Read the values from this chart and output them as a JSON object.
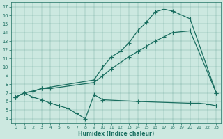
{
  "xlabel": "Humidex (Indice chaleur)",
  "bg_color": "#cce8e0",
  "line_color": "#1a6e60",
  "xlim": [
    -0.5,
    23.5
  ],
  "ylim": [
    3.5,
    17.5
  ],
  "xticks": [
    0,
    1,
    2,
    3,
    4,
    5,
    6,
    7,
    8,
    9,
    10,
    11,
    12,
    13,
    14,
    15,
    16,
    17,
    18,
    19,
    20,
    21,
    22,
    23
  ],
  "yticks": [
    4,
    5,
    6,
    7,
    8,
    9,
    10,
    11,
    12,
    13,
    14,
    15,
    16,
    17
  ],
  "line1_x": [
    0,
    1,
    2,
    3,
    9,
    10,
    11,
    12,
    13,
    14,
    15,
    16,
    17,
    18,
    20,
    23
  ],
  "line1_y": [
    6.5,
    7.0,
    7.2,
    7.5,
    8.5,
    10.0,
    11.2,
    11.8,
    12.8,
    14.2,
    15.2,
    16.4,
    16.7,
    16.5,
    15.6,
    7.0
  ],
  "line2_x": [
    0,
    1,
    2,
    3,
    4,
    9,
    10,
    11,
    12,
    13,
    14,
    15,
    16,
    17,
    18,
    20,
    23
  ],
  "line2_y": [
    6.5,
    7.0,
    7.2,
    7.5,
    7.5,
    8.2,
    9.0,
    9.8,
    10.5,
    11.2,
    11.8,
    12.4,
    13.0,
    13.5,
    14.0,
    14.2,
    7.0
  ],
  "line3_x": [
    0,
    1,
    2,
    3,
    4,
    5,
    6,
    7,
    8,
    9,
    10,
    14,
    20,
    21,
    22,
    23
  ],
  "line3_y": [
    6.5,
    7.0,
    6.5,
    6.2,
    5.8,
    5.5,
    5.2,
    4.6,
    4.0,
    6.8,
    6.2,
    6.0,
    5.8,
    5.8,
    5.7,
    5.5
  ]
}
